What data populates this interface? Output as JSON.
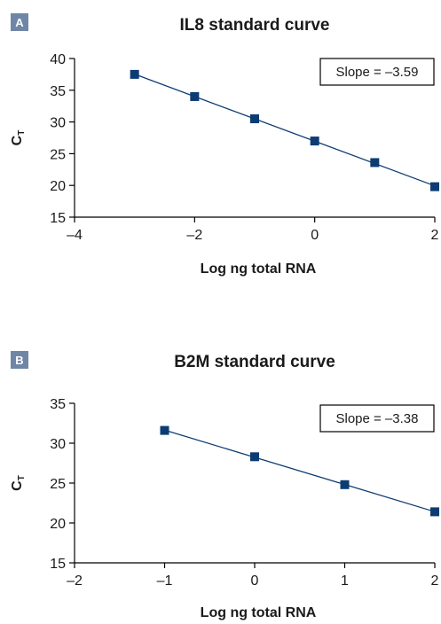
{
  "chart_data": [
    {
      "type": "scatter",
      "panel_label": "A",
      "title": "IL8 standard curve",
      "xlabel": "Log ng total RNA",
      "ylabel": "C",
      "ylabel_sub": "T",
      "xlim": [
        -4,
        2
      ],
      "ylim": [
        15,
        40
      ],
      "xticks": [
        -4,
        -2,
        0,
        2
      ],
      "xtick_labels": [
        "–4",
        "–2",
        "0",
        "2"
      ],
      "yticks": [
        15,
        20,
        25,
        30,
        35,
        40
      ],
      "ytick_labels": [
        "15",
        "20",
        "25",
        "30",
        "35",
        "40"
      ],
      "grid": false,
      "annotation": "Slope = –3.59",
      "annotation_position": "top-right",
      "colors": {
        "series": "#0d3c73",
        "badge": "#6f86a7"
      },
      "x": [
        -3,
        -2,
        -1,
        0,
        1,
        2
      ],
      "y": [
        37.5,
        34.0,
        30.5,
        27.0,
        23.6,
        19.8
      ]
    },
    {
      "type": "scatter",
      "panel_label": "B",
      "title": "B2M standard curve",
      "xlabel": "Log ng total RNA",
      "ylabel": "C",
      "ylabel_sub": "T",
      "xlim": [
        -2,
        2
      ],
      "ylim": [
        15,
        35
      ],
      "xticks": [
        -2,
        -1,
        0,
        1,
        2
      ],
      "xtick_labels": [
        "–2",
        "–1",
        "0",
        "1",
        "2"
      ],
      "yticks": [
        15,
        20,
        25,
        30,
        35
      ],
      "ytick_labels": [
        "15",
        "20",
        "25",
        "30",
        "35"
      ],
      "grid": false,
      "annotation": "Slope = –3.38",
      "annotation_position": "top-right",
      "colors": {
        "series": "#0d3c73",
        "badge": "#6f86a7"
      },
      "x": [
        -1,
        0,
        1,
        2
      ],
      "y": [
        31.6,
        28.3,
        24.8,
        21.4
      ]
    }
  ]
}
